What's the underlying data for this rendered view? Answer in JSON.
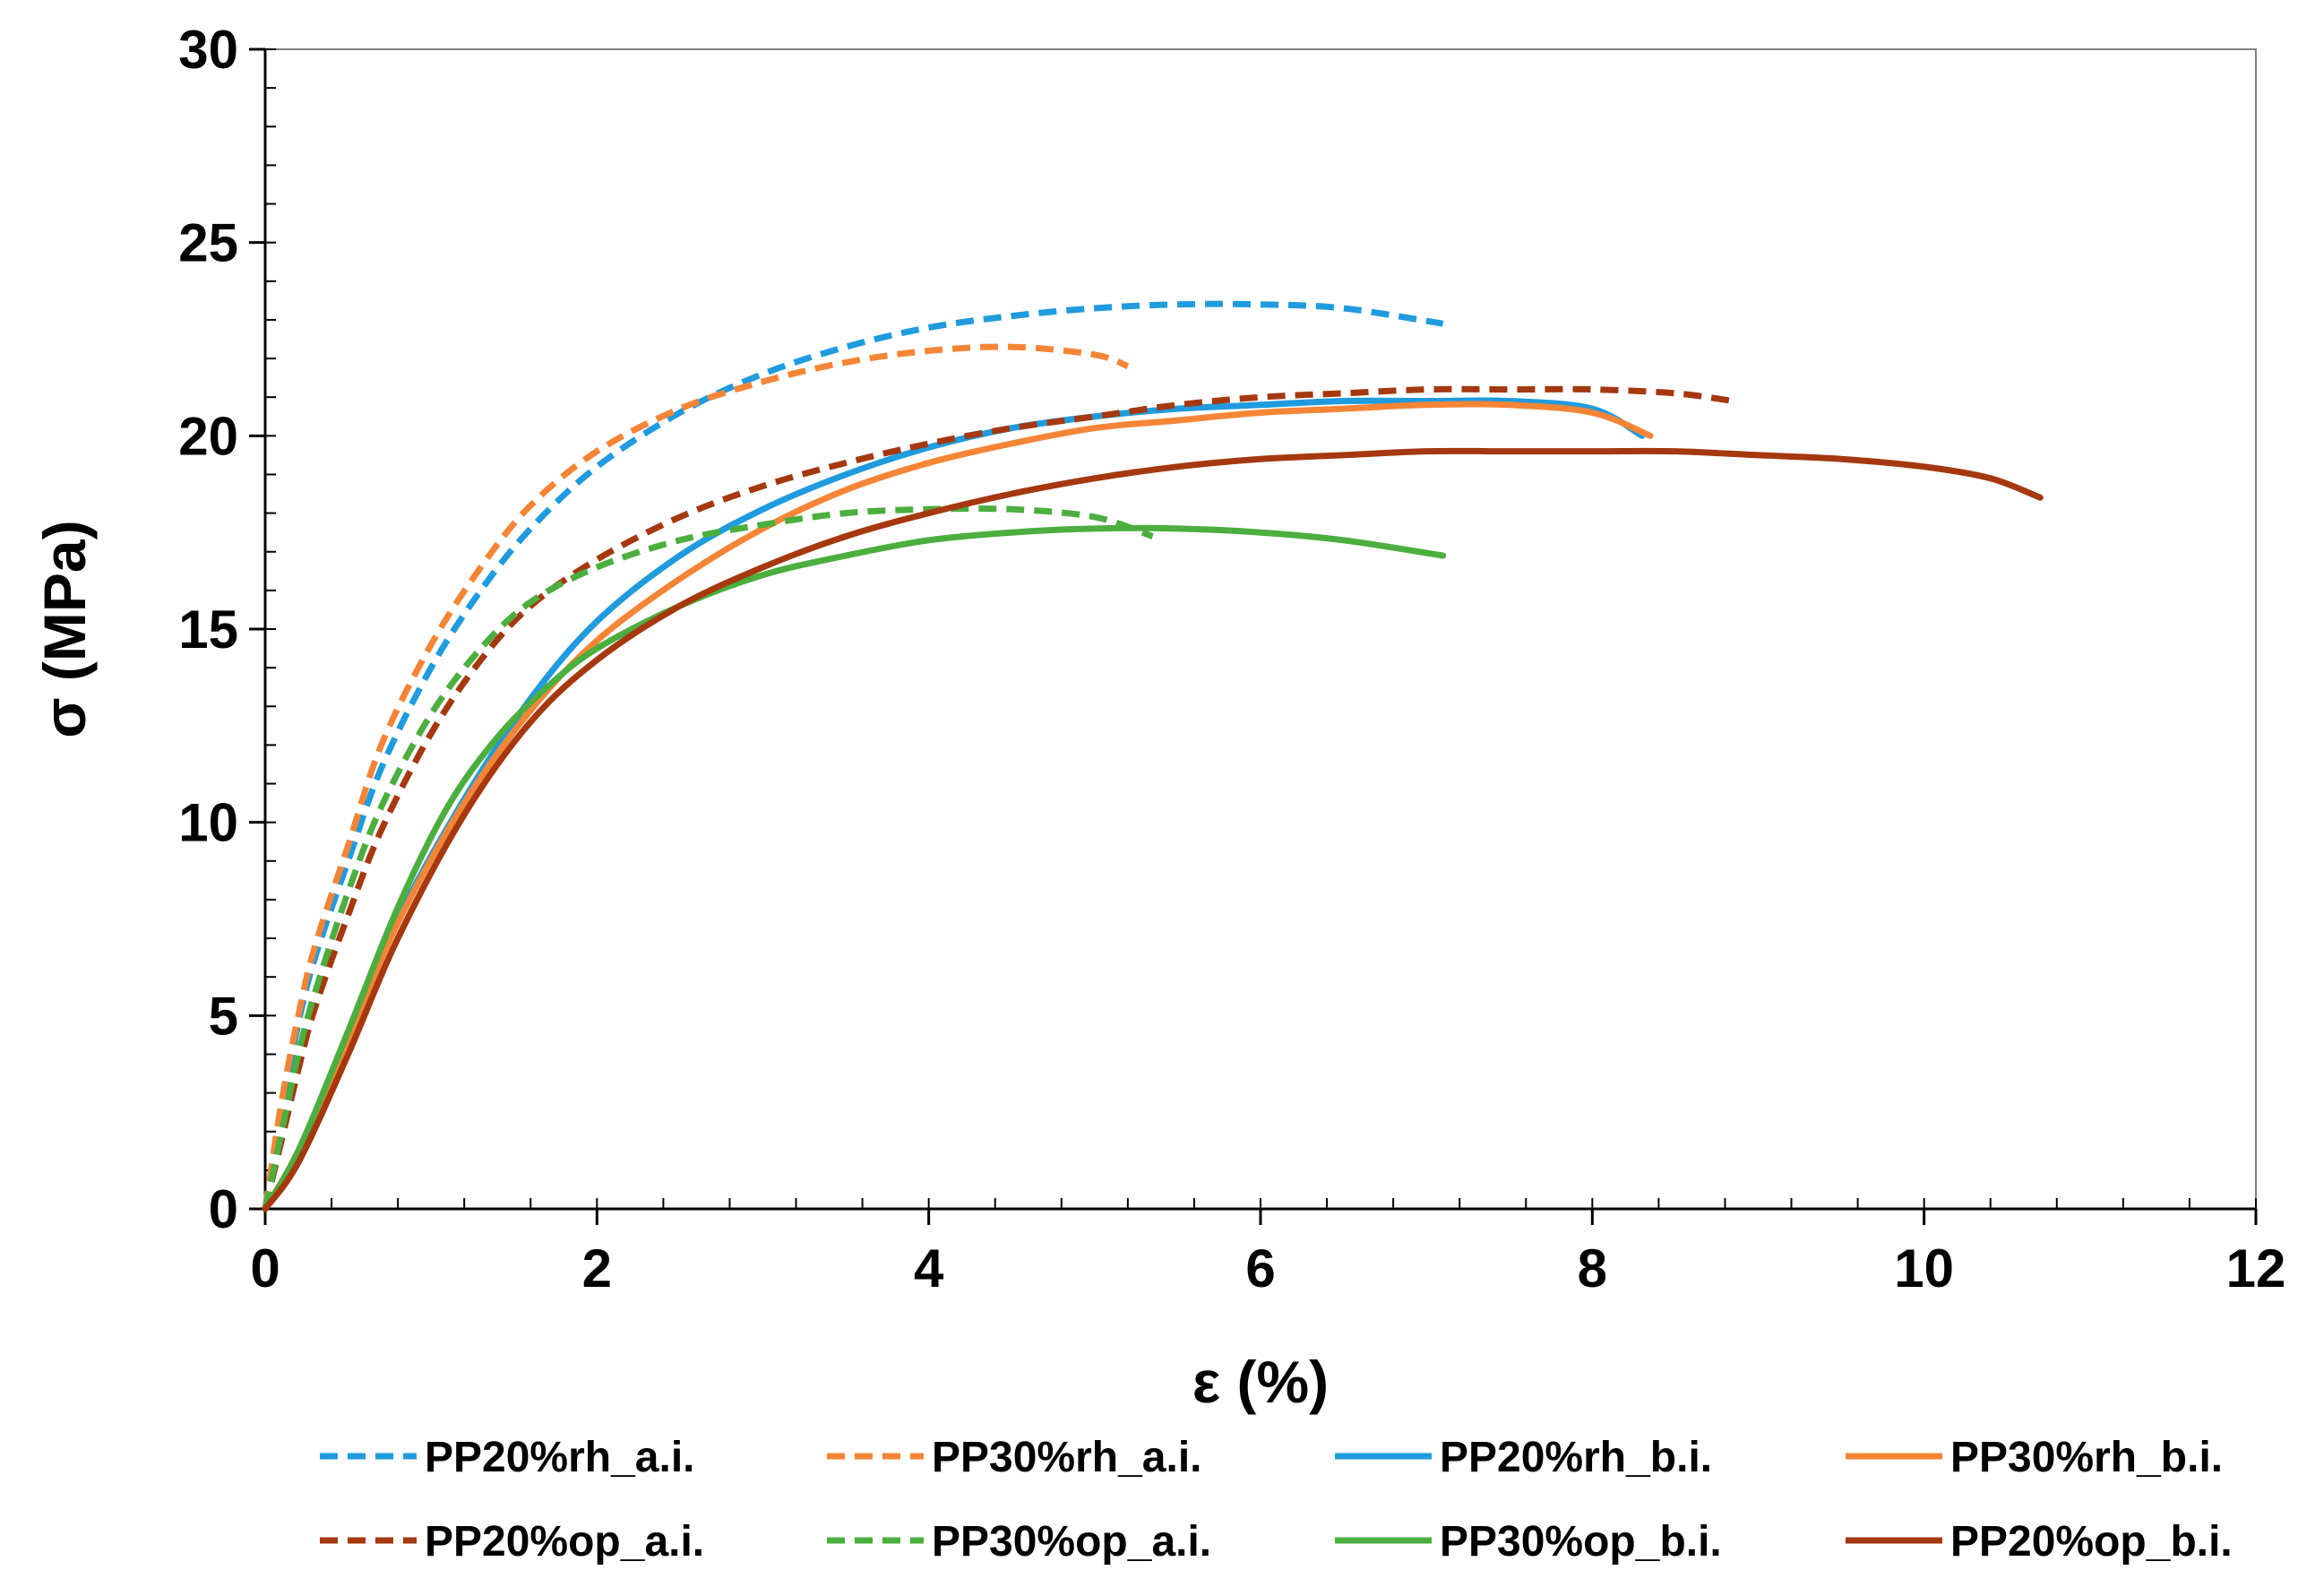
{
  "chart_data": {
    "type": "line",
    "title": "",
    "xlabel": "ε (%)",
    "ylabel": "σ (MPa)",
    "xlim": [
      0,
      12
    ],
    "ylim": [
      0,
      30
    ],
    "xticks": [
      0,
      2,
      4,
      6,
      8,
      10,
      12
    ],
    "yticks": [
      0,
      5,
      10,
      15,
      20,
      25,
      30
    ],
    "grid": false,
    "legend_position": "bottom",
    "series": [
      {
        "name": "PP20%rh_a.i.",
        "color": "#1F9BDE",
        "dash": "dashed",
        "x": [
          0,
          0.1,
          0.2,
          0.3,
          0.5,
          0.7,
          1.0,
          1.3,
          1.6,
          2.0,
          2.5,
          3.0,
          3.5,
          4.0,
          4.5,
          5.0,
          5.5,
          6.0,
          6.5,
          7.1
        ],
        "y": [
          0,
          2.5,
          4.8,
          6.5,
          9.0,
          11.4,
          14.0,
          16.0,
          17.6,
          19.2,
          20.6,
          21.6,
          22.3,
          22.8,
          23.1,
          23.3,
          23.4,
          23.4,
          23.3,
          22.9
        ]
      },
      {
        "name": "PP30%rh_a.i.",
        "color": "#F58536",
        "dash": "dashed",
        "x": [
          0,
          0.1,
          0.2,
          0.3,
          0.5,
          0.7,
          1.0,
          1.3,
          1.6,
          2.0,
          2.5,
          3.0,
          3.5,
          4.0,
          4.5,
          5.0,
          5.2
        ],
        "y": [
          0,
          2.8,
          5.0,
          6.8,
          9.4,
          12.0,
          14.6,
          16.6,
          18.2,
          19.6,
          20.7,
          21.4,
          21.9,
          22.2,
          22.3,
          22.1,
          21.8
        ]
      },
      {
        "name": "PP20%rh_b.i.",
        "color": "#1F9BDE",
        "dash": "solid",
        "x": [
          0,
          0.2,
          0.5,
          0.8,
          1.2,
          1.6,
          2.0,
          2.5,
          3.0,
          3.5,
          4.0,
          4.5,
          5.0,
          5.5,
          6.0,
          6.5,
          7.0,
          7.5,
          8.0,
          8.3
        ],
        "y": [
          0,
          1.5,
          4.5,
          7.5,
          10.6,
          13.2,
          15.2,
          16.9,
          18.1,
          19.0,
          19.7,
          20.2,
          20.5,
          20.7,
          20.8,
          20.9,
          20.9,
          20.9,
          20.7,
          20.0
        ]
      },
      {
        "name": "PP30%rh_b.i.",
        "color": "#F58536",
        "dash": "solid",
        "x": [
          0,
          0.2,
          0.5,
          0.8,
          1.2,
          1.6,
          2.0,
          2.5,
          3.0,
          3.5,
          4.0,
          4.5,
          5.0,
          5.5,
          6.0,
          6.5,
          7.0,
          7.5,
          8.0,
          8.35
        ],
        "y": [
          0,
          1.5,
          4.4,
          7.4,
          10.5,
          12.9,
          14.7,
          16.3,
          17.6,
          18.6,
          19.3,
          19.8,
          20.2,
          20.4,
          20.6,
          20.7,
          20.8,
          20.8,
          20.6,
          20.0
        ]
      },
      {
        "name": "PP20%op_a.i.",
        "color": "#A5380F",
        "dash": "dashed",
        "x": [
          0,
          0.1,
          0.2,
          0.3,
          0.5,
          0.7,
          1.0,
          1.3,
          1.6,
          2.0,
          2.5,
          3.0,
          3.5,
          4.0,
          4.5,
          5.0,
          5.5,
          6.0,
          6.5,
          7.0,
          7.5,
          8.0,
          8.5,
          8.85
        ],
        "y": [
          0,
          1.8,
          3.6,
          5.2,
          7.6,
          9.8,
          12.3,
          14.2,
          15.6,
          16.8,
          17.9,
          18.7,
          19.3,
          19.8,
          20.2,
          20.5,
          20.8,
          21.0,
          21.1,
          21.2,
          21.2,
          21.2,
          21.1,
          20.9
        ]
      },
      {
        "name": "PP30%op_a.i.",
        "color": "#4BAE3E",
        "dash": "dashed",
        "x": [
          0,
          0.1,
          0.2,
          0.3,
          0.5,
          0.7,
          1.0,
          1.3,
          1.6,
          2.0,
          2.5,
          3.0,
          3.5,
          4.0,
          4.5,
          5.0,
          5.35
        ],
        "y": [
          0,
          2.0,
          4.0,
          5.6,
          8.2,
          10.4,
          12.8,
          14.5,
          15.7,
          16.6,
          17.3,
          17.7,
          18.0,
          18.1,
          18.1,
          17.9,
          17.4
        ]
      },
      {
        "name": "PP30%op_b.i.",
        "color": "#4BAE3E",
        "dash": "solid",
        "x": [
          0,
          0.2,
          0.5,
          0.8,
          1.1,
          1.4,
          1.7,
          2.0,
          2.5,
          3.0,
          3.5,
          4.0,
          4.5,
          5.0,
          5.5,
          6.0,
          6.5,
          7.1
        ],
        "y": [
          0,
          1.5,
          4.6,
          7.8,
          10.4,
          12.2,
          13.5,
          14.5,
          15.6,
          16.4,
          16.9,
          17.3,
          17.5,
          17.6,
          17.6,
          17.5,
          17.3,
          16.9
        ]
      },
      {
        "name": "PP20%op_b.i.",
        "color": "#A5380F",
        "dash": "solid",
        "x": [
          0,
          0.2,
          0.5,
          0.8,
          1.2,
          1.6,
          2.0,
          2.5,
          3.0,
          3.5,
          4.0,
          4.5,
          5.0,
          5.5,
          6.0,
          6.5,
          7.0,
          7.5,
          8.0,
          8.5,
          9.0,
          9.5,
          10.0,
          10.4,
          10.7
        ],
        "y": [
          0,
          1.2,
          4.0,
          7.0,
          10.2,
          12.6,
          14.2,
          15.6,
          16.6,
          17.4,
          18.0,
          18.5,
          18.9,
          19.2,
          19.4,
          19.5,
          19.6,
          19.6,
          19.6,
          19.6,
          19.5,
          19.4,
          19.2,
          18.9,
          18.4
        ]
      }
    ]
  }
}
